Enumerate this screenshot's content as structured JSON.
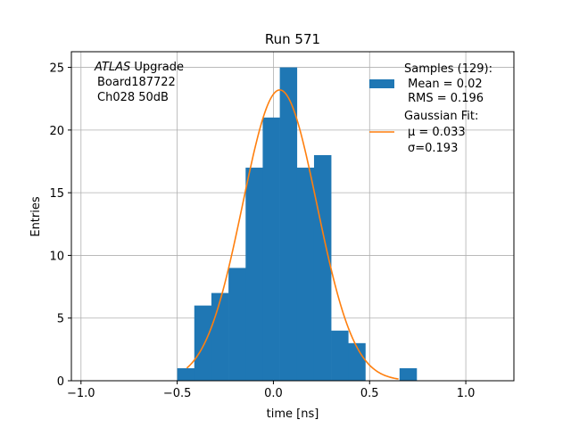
{
  "chart_data": {
    "type": "bar",
    "title": "Run 571",
    "xlabel": "time [ns]",
    "ylabel": "Entries",
    "xlim": [
      -1.05,
      1.25
    ],
    "ylim": [
      0,
      26.25
    ],
    "xticks": [
      -1.0,
      -0.5,
      0.0,
      0.5,
      1.0
    ],
    "xtick_labels": [
      "−1.0",
      "−0.5",
      "0.0",
      "0.5",
      "1.0"
    ],
    "yticks": [
      0,
      5,
      10,
      15,
      20,
      25
    ],
    "ytick_labels": [
      "0",
      "5",
      "10",
      "15",
      "20",
      "25"
    ],
    "grid": true,
    "legend_position": "top-right",
    "annotation": {
      "line1_italic": "ATLAS",
      "line1_rest": " Upgrade",
      "line2": "Board187722",
      "line3": "Ch028 50dB"
    },
    "histogram": {
      "name": "Samples (129):",
      "bin_width": 0.0889,
      "bin_lefts": [
        -0.5,
        -0.4111,
        -0.3222,
        -0.2333,
        -0.1444,
        -0.0556,
        0.0333,
        0.1222,
        0.2111,
        0.3,
        0.3889,
        0.4778,
        0.5667,
        0.6556
      ],
      "values": [
        1,
        6,
        7,
        9,
        17,
        21,
        25,
        17,
        18,
        4,
        3,
        0,
        0,
        1
      ],
      "legend_lines": [
        "Samples (129):",
        " Mean = 0.02",
        " RMS = 0.196"
      ],
      "color": "#1f77b4"
    },
    "fit": {
      "name": "Gaussian Fit:",
      "mu": 0.033,
      "sigma": 0.193,
      "amplitude": 23.2,
      "x_range": [
        -0.45,
        0.65
      ],
      "legend_line1": "Gaussian Fit:",
      "legend_mu": "μ = 0.033",
      "legend_sigma": "σ=0.193",
      "color": "#ff7f0e"
    }
  }
}
